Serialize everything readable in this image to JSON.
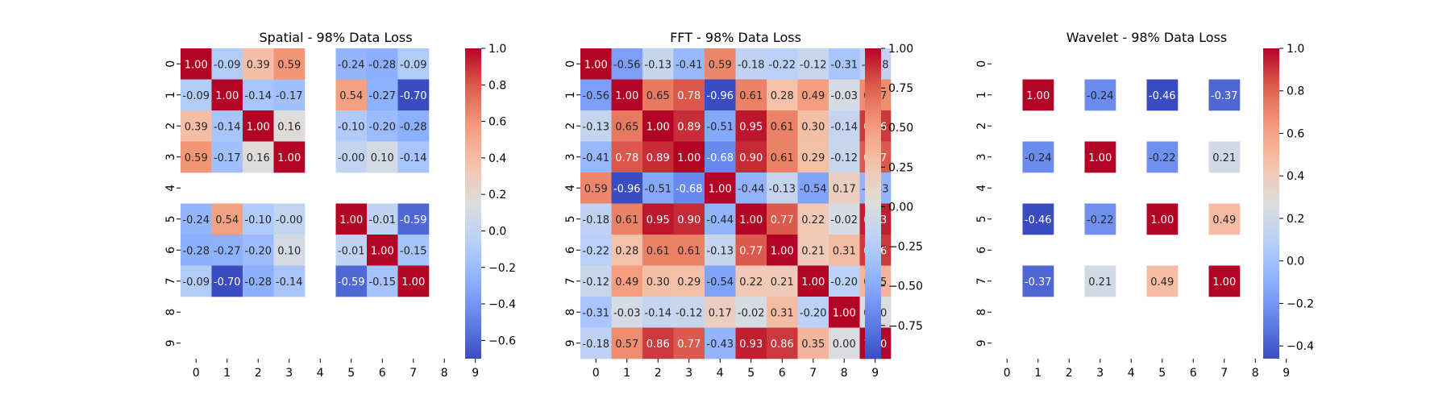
{
  "chart_data": [
    {
      "type": "heatmap",
      "title": "Spatial - 98% Data Loss",
      "x_ticks": [
        "0",
        "1",
        "2",
        "3",
        "4",
        "5",
        "6",
        "7",
        "8",
        "9"
      ],
      "y_ticks": [
        "0",
        "1",
        "2",
        "3",
        "4",
        "5",
        "6",
        "7",
        "8",
        "9"
      ],
      "colormap": "coolwarm",
      "vmin": -0.7,
      "vmax": 1.0,
      "colorbar_ticks": [
        -0.6,
        -0.4,
        -0.2,
        0.0,
        0.2,
        0.4,
        0.6,
        0.8,
        1.0
      ],
      "colorbar_labels": [
        "−0.6",
        "−0.4",
        "−0.2",
        "0.0",
        "0.2",
        "0.4",
        "0.6",
        "0.8",
        "1.0"
      ],
      "cells": [
        [
          1.0,
          -0.09,
          0.39,
          0.59,
          null,
          -0.24,
          -0.28,
          -0.09,
          null,
          null
        ],
        [
          -0.09,
          1.0,
          -0.14,
          -0.17,
          null,
          0.54,
          -0.27,
          -0.7,
          null,
          null
        ],
        [
          0.39,
          -0.14,
          1.0,
          0.16,
          null,
          -0.1,
          -0.2,
          -0.28,
          null,
          null
        ],
        [
          0.59,
          -0.17,
          0.16,
          1.0,
          null,
          -0.0,
          0.1,
          -0.14,
          null,
          null
        ],
        [
          null,
          null,
          null,
          null,
          null,
          null,
          null,
          null,
          null,
          null
        ],
        [
          -0.24,
          0.54,
          -0.1,
          -0.0,
          null,
          1.0,
          -0.01,
          -0.59,
          null,
          null
        ],
        [
          -0.28,
          -0.27,
          -0.2,
          0.1,
          null,
          -0.01,
          1.0,
          -0.15,
          null,
          null
        ],
        [
          -0.09,
          -0.7,
          -0.28,
          -0.14,
          null,
          -0.59,
          -0.15,
          1.0,
          null,
          null
        ],
        [
          null,
          null,
          null,
          null,
          null,
          null,
          null,
          null,
          null,
          null
        ],
        [
          null,
          null,
          null,
          null,
          null,
          null,
          null,
          null,
          null,
          null
        ]
      ]
    },
    {
      "type": "heatmap",
      "title": "FFT - 98% Data Loss",
      "x_ticks": [
        "0",
        "1",
        "2",
        "3",
        "4",
        "5",
        "6",
        "7",
        "8",
        "9"
      ],
      "y_ticks": [
        "0",
        "1",
        "2",
        "3",
        "4",
        "5",
        "6",
        "7",
        "8",
        "9"
      ],
      "colormap": "coolwarm",
      "vmin": -0.96,
      "vmax": 1.0,
      "colorbar_ticks": [
        -0.75,
        -0.5,
        -0.25,
        0.0,
        0.25,
        0.5,
        0.75,
        1.0
      ],
      "colorbar_labels": [
        "−0.75",
        "−0.50",
        "−0.25",
        "0.00",
        "0.25",
        "0.50",
        "0.75",
        "1.00"
      ],
      "cells": [
        [
          1.0,
          -0.56,
          -0.13,
          -0.41,
          0.59,
          -0.18,
          -0.22,
          -0.12,
          -0.31,
          -0.18
        ],
        [
          -0.56,
          1.0,
          0.65,
          0.78,
          -0.96,
          0.61,
          0.28,
          0.49,
          -0.03,
          0.57
        ],
        [
          -0.13,
          0.65,
          1.0,
          0.89,
          -0.51,
          0.95,
          0.61,
          0.3,
          -0.14,
          0.86
        ],
        [
          -0.41,
          0.78,
          0.89,
          1.0,
          -0.68,
          0.9,
          0.61,
          0.29,
          -0.12,
          0.77
        ],
        [
          0.59,
          -0.96,
          -0.51,
          -0.68,
          1.0,
          -0.44,
          -0.13,
          -0.54,
          0.17,
          -0.43
        ],
        [
          -0.18,
          0.61,
          0.95,
          0.9,
          -0.44,
          1.0,
          0.77,
          0.22,
          -0.02,
          0.93
        ],
        [
          -0.22,
          0.28,
          0.61,
          0.61,
          -0.13,
          0.77,
          1.0,
          0.21,
          0.31,
          0.86
        ],
        [
          -0.12,
          0.49,
          0.3,
          0.29,
          -0.54,
          0.22,
          0.21,
          1.0,
          -0.2,
          0.35
        ],
        [
          -0.31,
          -0.03,
          -0.14,
          -0.12,
          0.17,
          -0.02,
          0.31,
          -0.2,
          1.0,
          0.0
        ],
        [
          -0.18,
          0.57,
          0.86,
          0.77,
          -0.43,
          0.93,
          0.86,
          0.35,
          0.0,
          1.0
        ]
      ]
    },
    {
      "type": "heatmap",
      "title": "Wavelet - 98% Data Loss",
      "x_ticks": [
        "0",
        "1",
        "2",
        "3",
        "4",
        "5",
        "6",
        "7",
        "8",
        "9"
      ],
      "y_ticks": [
        "0",
        "1",
        "2",
        "3",
        "4",
        "5",
        "6",
        "7",
        "8",
        "9"
      ],
      "colormap": "coolwarm",
      "vmin": -0.46,
      "vmax": 1.0,
      "colorbar_ticks": [
        -0.4,
        -0.2,
        0.0,
        0.2,
        0.4,
        0.6,
        0.8,
        1.0
      ],
      "colorbar_labels": [
        "−0.4",
        "−0.2",
        "0.0",
        "0.2",
        "0.4",
        "0.6",
        "0.8",
        "1.0"
      ],
      "cells": [
        [
          null,
          null,
          null,
          null,
          null,
          null,
          null,
          null,
          null,
          null
        ],
        [
          null,
          1.0,
          null,
          -0.24,
          null,
          -0.46,
          null,
          -0.37,
          null,
          null
        ],
        [
          null,
          null,
          null,
          null,
          null,
          null,
          null,
          null,
          null,
          null
        ],
        [
          null,
          -0.24,
          null,
          1.0,
          null,
          -0.22,
          null,
          0.21,
          null,
          null
        ],
        [
          null,
          null,
          null,
          null,
          null,
          null,
          null,
          null,
          null,
          null
        ],
        [
          null,
          -0.46,
          null,
          -0.22,
          null,
          1.0,
          null,
          0.49,
          null,
          null
        ],
        [
          null,
          null,
          null,
          null,
          null,
          null,
          null,
          null,
          null,
          null
        ],
        [
          null,
          -0.37,
          null,
          0.21,
          null,
          0.49,
          null,
          1.0,
          null,
          null
        ],
        [
          null,
          null,
          null,
          null,
          null,
          null,
          null,
          null,
          null,
          null
        ],
        [
          null,
          null,
          null,
          null,
          null,
          null,
          null,
          null,
          null,
          null
        ]
      ]
    }
  ]
}
